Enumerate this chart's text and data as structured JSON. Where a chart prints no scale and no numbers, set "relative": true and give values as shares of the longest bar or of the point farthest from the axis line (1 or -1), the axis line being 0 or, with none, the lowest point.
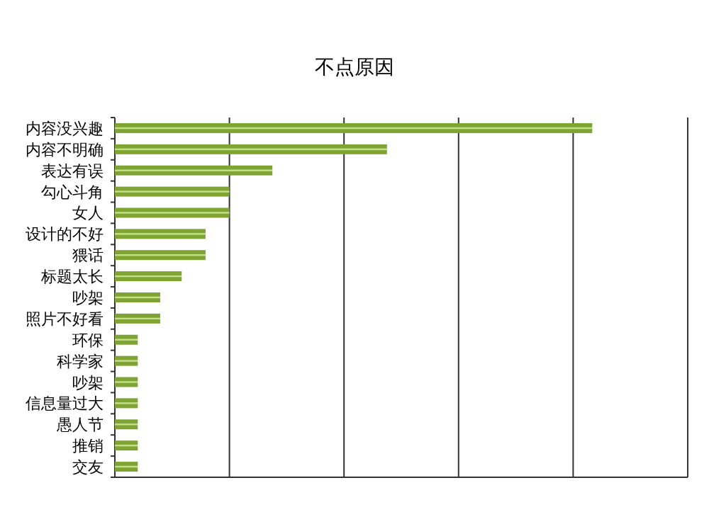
{
  "chart_data": {
    "type": "bar",
    "title": "不点原因",
    "orientation": "horizontal",
    "relative": true,
    "grid": "x",
    "color": "#7ea534",
    "categories": [
      "内容没兴趣",
      "内容不明确",
      "表达有误",
      "勾心斗角",
      "女人",
      "设计的不好",
      "猥话",
      "标题太长",
      "吵架",
      "照片不好看",
      "环保",
      "科学家",
      "吵架",
      "信息量过大",
      "愚人节",
      "推销",
      "交友"
    ],
    "values": [
      1,
      0.57,
      0.33,
      0.24,
      0.24,
      0.19,
      0.19,
      0.14,
      0.095,
      0.095,
      0.048,
      0.048,
      0.048,
      0.048,
      0.048,
      0.048,
      0.048
    ]
  }
}
